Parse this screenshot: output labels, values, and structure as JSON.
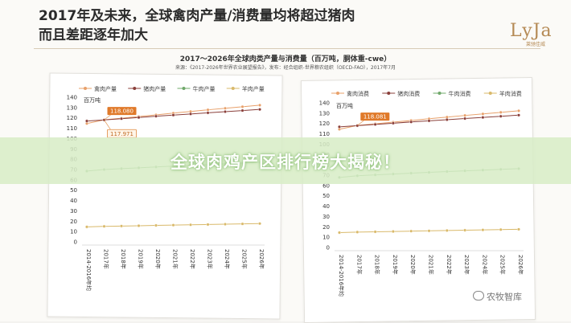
{
  "headline": {
    "line1": "2017年及未来，全球禽肉产量/消费量均将超过猪肉",
    "line2": "而且差距逐年加大"
  },
  "logo": {
    "text": "LyJa",
    "sub": "莱驰佳威"
  },
  "chart_title": "2017～2026年全球肉类产量与消费量（百万吨，胴体重-cwe）",
  "chart_source": "来源：《2017-2026年世界农业展望报告》，发布：经合组织-世界粮农组织（OECD-FAO），2017年7月",
  "banner": {
    "text": "全球肉鸡产区排行榜大揭秘！"
  },
  "watermark": {
    "text": "农牧智库"
  },
  "colors": {
    "poultry": "#e8a06a",
    "pork": "#8a3f3a",
    "beef": "#6fa86a",
    "sheep": "#d9b96a"
  },
  "chart_data": [
    {
      "type": "line",
      "categories": [
        "2014-2016年均",
        "2017年",
        "2018年",
        "2019年",
        "2020年",
        "2021年",
        "2022年",
        "2023年",
        "2024年",
        "2025年",
        "2026年"
      ],
      "ylabel": "百万吨",
      "ylim": [
        0,
        140
      ],
      "yticks": [
        0,
        10,
        20,
        30,
        40,
        50,
        60,
        70,
        80,
        90,
        100,
        110,
        120,
        130,
        140
      ],
      "grid": false,
      "legend": "top",
      "callouts": [
        {
          "text": "118.080",
          "series": "禽肉产量",
          "index": 1
        },
        {
          "text": "117.971",
          "series": "猪肉产量",
          "index": 1
        }
      ],
      "series": [
        {
          "name": "禽肉产量",
          "color_key": "poultry",
          "values": [
            114.5,
            118.1,
            119.7,
            121.3,
            122.9,
            124.6,
            126.2,
            127.8,
            129.3,
            130.8,
            132.3
          ]
        },
        {
          "name": "猪肉产量",
          "color_key": "pork",
          "values": [
            117.0,
            118.0,
            119.2,
            120.4,
            121.6,
            122.7,
            123.8,
            124.9,
            126.0,
            127.1,
            128.2
          ]
        },
        {
          "name": "牛肉产量",
          "color_key": "beef",
          "values": [
            68.5,
            70.0,
            70.9,
            71.7,
            72.5,
            73.3,
            74.1,
            74.8,
            75.5,
            76.2,
            77.0
          ]
        },
        {
          "name": "羊肉产量",
          "color_key": "sheep",
          "values": [
            14.5,
            15.0,
            15.3,
            15.6,
            15.9,
            16.2,
            16.5,
            16.8,
            17.1,
            17.4,
            17.7
          ]
        }
      ]
    },
    {
      "type": "line",
      "categories": [
        "2014-2016年均",
        "2017年",
        "2018年",
        "2019年",
        "2020年",
        "2021年",
        "2022年",
        "2023年",
        "2024年",
        "2025年",
        "2026年"
      ],
      "ylabel": "百万吨",
      "ylim": [
        0,
        140
      ],
      "yticks": [
        0,
        10,
        20,
        30,
        40,
        50,
        60,
        70,
        80,
        90,
        100,
        110,
        120,
        130,
        140
      ],
      "grid": false,
      "legend": "top",
      "callouts": [
        {
          "text": "118.081",
          "series": "禽肉消费",
          "index": 1
        }
      ],
      "series": [
        {
          "name": "禽肉消费",
          "color_key": "poultry",
          "values": [
            114.4,
            118.1,
            119.7,
            121.3,
            122.9,
            124.6,
            126.2,
            127.8,
            129.3,
            130.8,
            132.3
          ]
        },
        {
          "name": "猪肉消费",
          "color_key": "pork",
          "values": [
            116.8,
            117.9,
            119.1,
            120.3,
            121.5,
            122.6,
            123.7,
            124.8,
            125.9,
            127.0,
            128.1
          ]
        },
        {
          "name": "牛肉消费",
          "color_key": "beef",
          "values": [
            67.8,
            69.4,
            70.3,
            71.1,
            71.9,
            72.7,
            73.5,
            74.2,
            74.9,
            75.6,
            76.3
          ]
        },
        {
          "name": "羊肉消费",
          "color_key": "sheep",
          "values": [
            14.4,
            14.9,
            15.2,
            15.5,
            15.8,
            16.1,
            16.4,
            16.7,
            17.0,
            17.3,
            17.6
          ]
        }
      ]
    }
  ]
}
